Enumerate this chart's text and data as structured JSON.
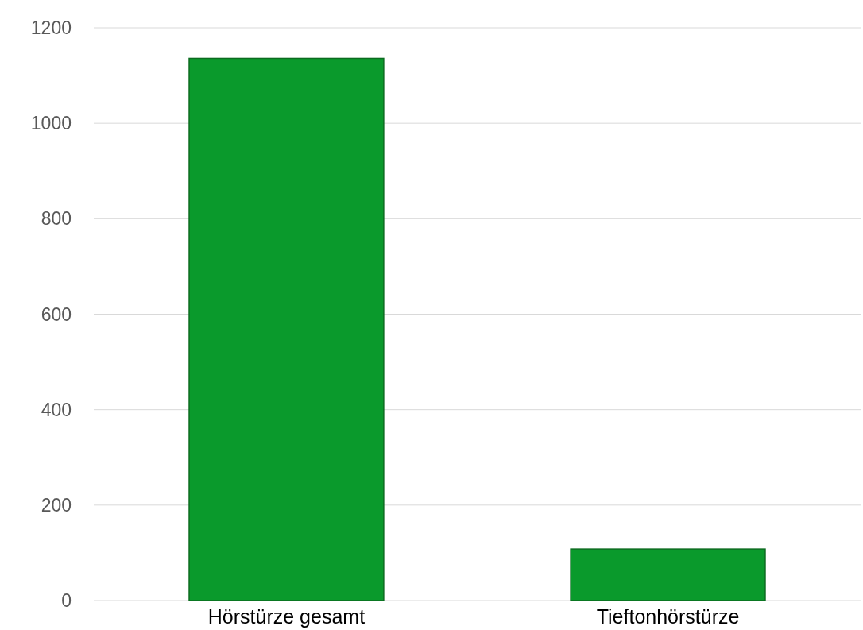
{
  "chart_data": {
    "type": "bar",
    "categories": [
      "Hörstürze gesamt",
      "Tieftonhörstürze"
    ],
    "values": [
      1136,
      108
    ],
    "color": "#0a9a2c",
    "ylim": [
      0,
      1200
    ],
    "yticks": [
      0,
      200,
      400,
      600,
      800,
      1000,
      1200
    ],
    "grid": "y"
  }
}
